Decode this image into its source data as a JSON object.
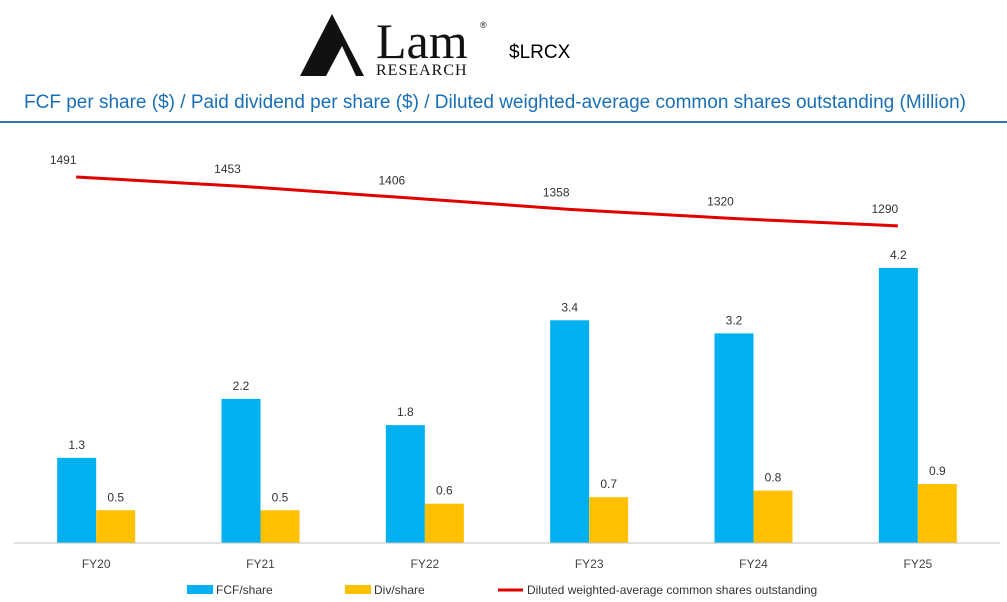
{
  "header": {
    "logo_word": "Lam",
    "logo_sub": "RESEARCH",
    "logo_mark": "®",
    "ticker": "$LRCX"
  },
  "chart_data": {
    "type": "bar",
    "title": "FCF per share ($) / Paid dividend per share ($) / Diluted weighted-average common shares outstanding (Million)",
    "categories": [
      "FY20",
      "FY21",
      "FY22",
      "FY23",
      "FY24",
      "FY25"
    ],
    "series": [
      {
        "name": "FCF/share",
        "kind": "bar",
        "color": "#00b0f0",
        "values": [
          1.3,
          2.2,
          1.8,
          3.4,
          3.2,
          4.2
        ]
      },
      {
        "name": "Div/share",
        "kind": "bar",
        "color": "#ffc000",
        "values": [
          0.5,
          0.5,
          0.6,
          0.7,
          0.8,
          0.9
        ]
      },
      {
        "name": "Diluted weighted-average common shares outstanding",
        "kind": "line",
        "color": "#e00000",
        "values": [
          1491,
          1453,
          1406,
          1358,
          1320,
          1290
        ]
      }
    ],
    "legend": "bottom",
    "grid": false
  }
}
